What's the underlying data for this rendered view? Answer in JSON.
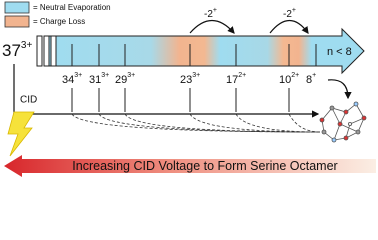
{
  "legend": [
    {
      "label": "= Neutral Evaporation"
    },
    {
      "label": "= Charge Loss"
    }
  ],
  "precursor": {
    "number": "37",
    "charge": "3+"
  },
  "charge_loss_steps": [
    {
      "text": "-2",
      "charge": "+"
    },
    {
      "text": "-2",
      "charge": "+"
    }
  ],
  "ions": [
    {
      "number": "34",
      "charge": "3+"
    },
    {
      "number": "31",
      "charge": "3+"
    },
    {
      "number": "29",
      "charge": "3+"
    },
    {
      "number": "23",
      "charge": "3+"
    },
    {
      "number": "17",
      "charge": "2+"
    },
    {
      "number": "10",
      "charge": "2+"
    },
    {
      "number": "8",
      "charge": "+"
    }
  ],
  "end_label": "n < 8",
  "cid_label": "CID",
  "voltage_label": "Increasing CID Voltage to Form Serine Octamer"
}
